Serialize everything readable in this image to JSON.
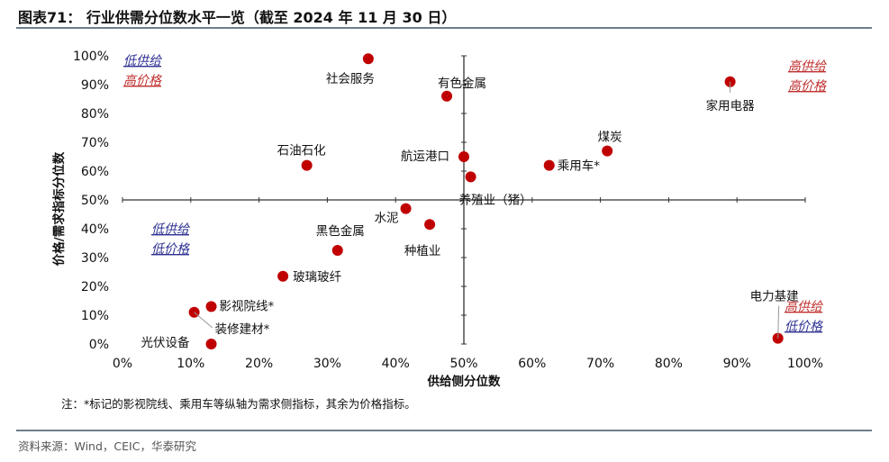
{
  "header": {
    "title": "图表71： 行业供需分位数水平一览（截至 2024 年 11 月 30 日）"
  },
  "note": "注：*标记的影视院线、乘用车等纵轴为需求侧指标，其余为价格指标。",
  "source": "资料来源：Wind，CEIC，华泰研究",
  "colors": {
    "point": "#c00000",
    "quad_blue": "#2e3192",
    "quad_red": "#c0302f",
    "axis": "#333333"
  },
  "chart_data": {
    "type": "scatter",
    "xlabel": "供给侧分位数",
    "ylabel": "价格/需求指标分位数",
    "xlim": [
      0,
      1
    ],
    "ylim": [
      0,
      1
    ],
    "x_ticks": [
      "0%",
      "10%",
      "20%",
      "30%",
      "40%",
      "50%",
      "60%",
      "70%",
      "80%",
      "90%",
      "100%"
    ],
    "y_ticks": [
      "0%",
      "10%",
      "20%",
      "30%",
      "40%",
      "50%",
      "60%",
      "70%",
      "80%",
      "90%",
      "100%"
    ],
    "quadrant_labels": [
      {
        "lines": [
          "低供给",
          "高价格"
        ],
        "colors": [
          "blue",
          "red"
        ],
        "quadrant": "top-left"
      },
      {
        "lines": [
          "高供给",
          "高价格"
        ],
        "colors": [
          "red",
          "red"
        ],
        "quadrant": "top-right"
      },
      {
        "lines": [
          "低供给",
          "低价格"
        ],
        "colors": [
          "blue",
          "blue"
        ],
        "quadrant": "bottom-left"
      },
      {
        "lines": [
          "高供给",
          "低价格"
        ],
        "colors": [
          "red",
          "blue"
        ],
        "quadrant": "bottom-right"
      }
    ],
    "points": [
      {
        "label": "社会服务",
        "x": 0.36,
        "y": 0.99
      },
      {
        "label": "有色金属",
        "x": 0.475,
        "y": 0.86
      },
      {
        "label": "家用电器",
        "x": 0.89,
        "y": 0.91
      },
      {
        "label": "石油石化",
        "x": 0.27,
        "y": 0.62
      },
      {
        "label": "航运港口",
        "x": 0.5,
        "y": 0.65
      },
      {
        "label": "煤炭",
        "x": 0.71,
        "y": 0.67
      },
      {
        "label": "乘用车*",
        "x": 0.625,
        "y": 0.62
      },
      {
        "label": "养殖业（猪）",
        "x": 0.51,
        "y": 0.58
      },
      {
        "label": "水泥",
        "x": 0.415,
        "y": 0.47
      },
      {
        "label": "种植业",
        "x": 0.45,
        "y": 0.415
      },
      {
        "label": "黑色金属",
        "x": 0.315,
        "y": 0.325
      },
      {
        "label": "玻璃玻纤",
        "x": 0.235,
        "y": 0.235
      },
      {
        "label": "影视院线*",
        "x": 0.13,
        "y": 0.13
      },
      {
        "label": "装修建材*",
        "x": 0.105,
        "y": 0.11
      },
      {
        "label": "光伏设备",
        "x": 0.13,
        "y": 0.0
      },
      {
        "label": "电力基建",
        "x": 0.96,
        "y": 0.02
      }
    ]
  }
}
